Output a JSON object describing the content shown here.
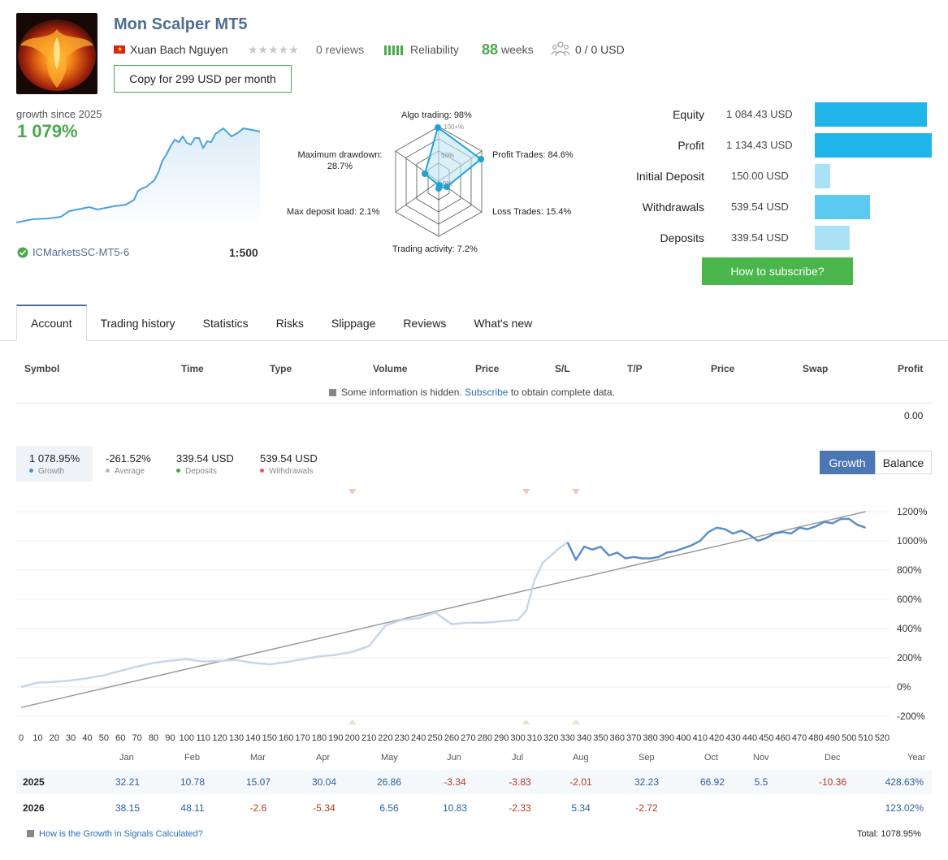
{
  "header": {
    "title": "Mon Scalper MT5",
    "author": "Xuan Bach Nguyen",
    "flag_icon": "vietnam-flag-icon",
    "stars": "★★★★★",
    "reviews": "0 reviews",
    "reliability_label": "Reliability",
    "weeks_value": "88",
    "weeks_label": "weeks",
    "subscribers": "0 / 0 USD",
    "copy_button": "Copy for 299 USD per month"
  },
  "growth_summary": {
    "label": "growth since 2025",
    "value": "1 079%",
    "broker": "ICMarketsSC-MT5-6",
    "leverage": "1:500"
  },
  "radar": {
    "algo_trading": "Algo trading: 98%",
    "profit_trades": "Profit Trades: 84.6%",
    "loss_trades": "Loss Trades: 15.4%",
    "trading_activity": "Trading activity: 7.2%",
    "max_deposit_load": "Max deposit load: 2.1%",
    "max_drawdown_line1": "Maximum drawdown:",
    "max_drawdown_line2": "28.7%",
    "ring_100": "100+%",
    "ring_50": "50%",
    "ring_0": "0%"
  },
  "account_stats": [
    {
      "label": "Equity",
      "value": "1 084.43 USD",
      "amount": 1084.43,
      "color": "#1fb5e8"
    },
    {
      "label": "Profit",
      "value": "1 134.43 USD",
      "amount": 1134.43,
      "color": "#1fb5e8"
    },
    {
      "label": "Initial Deposit",
      "value": "150.00 USD",
      "amount": 150.0,
      "color": "#a9e2f7"
    },
    {
      "label": "Withdrawals",
      "value": "539.54 USD",
      "amount": 539.54,
      "color": "#5ccaf0"
    },
    {
      "label": "Deposits",
      "value": "339.54 USD",
      "amount": 339.54,
      "color": "#a9e2f7"
    }
  ],
  "subscribe_button": "How to subscribe?",
  "tabs": [
    "Account",
    "Trading history",
    "Statistics",
    "Risks",
    "Slippage",
    "Reviews",
    "What's new"
  ],
  "trades_table": {
    "headers": [
      "Symbol",
      "Time",
      "Type",
      "Volume",
      "Price",
      "S/L",
      "T/P",
      "Price",
      "Swap",
      "Profit"
    ],
    "hidden_note_before": "Some information is hidden.",
    "hidden_note_link": "Subscribe",
    "hidden_note_after": "to obtain complete data.",
    "total_profit": "0.00"
  },
  "summary_chips": [
    {
      "value": "1 078.95%",
      "label": "Growth",
      "dot": "#4b8fd6"
    },
    {
      "value": "-261.52%",
      "label": "Average",
      "dot": "#b8b8b8"
    },
    {
      "value": "339.54 USD",
      "label": "Deposits",
      "dot": "#49a94b"
    },
    {
      "value": "539.54 USD",
      "label": "Withdrawals",
      "dot": "#e05a5a"
    }
  ],
  "chart_toggle": {
    "growth": "Growth",
    "balance": "Balance"
  },
  "chart_data": {
    "type": "line",
    "x_ticks": [
      "0",
      "10",
      "20",
      "30",
      "40",
      "50",
      "60",
      "70",
      "80",
      "90",
      "100",
      "110",
      "120",
      "130",
      "140",
      "150",
      "160",
      "170",
      "180",
      "190",
      "200",
      "210",
      "220",
      "230",
      "240",
      "250",
      "260",
      "270",
      "280",
      "290",
      "300",
      "310",
      "320",
      "330",
      "340",
      "350",
      "360",
      "370",
      "380",
      "390",
      "400",
      "410",
      "420",
      "430",
      "440",
      "450",
      "460",
      "470",
      "480",
      "490",
      "500",
      "510",
      "520"
    ],
    "y_ticks": [
      "1200%",
      "1000%",
      "800%",
      "600%",
      "400%",
      "200%",
      "0%",
      "-200%"
    ],
    "ylim": [
      -200,
      1200
    ],
    "xlim": [
      0,
      520
    ],
    "series": [
      {
        "color": "#c7d5ea",
        "x": [
          0,
          10,
          20,
          30,
          40,
          50,
          60,
          70,
          80,
          90,
          100,
          110,
          120,
          130,
          140,
          150,
          160,
          170,
          180,
          190,
          200,
          210,
          220,
          230,
          240,
          250,
          260,
          270,
          280,
          290,
          300,
          305,
          310,
          315,
          320,
          325,
          330
        ],
        "y": [
          0,
          30,
          35,
          45,
          60,
          80,
          110,
          140,
          165,
          180,
          190,
          175,
          180,
          185,
          165,
          155,
          170,
          190,
          210,
          220,
          240,
          280,
          420,
          460,
          470,
          510,
          430,
          440,
          440,
          450,
          460,
          520,
          730,
          850,
          900,
          950,
          990
        ]
      },
      {
        "color": "#5b8fc9",
        "x": [
          330,
          335,
          340,
          345,
          350,
          355,
          360,
          365,
          370,
          375,
          380,
          385,
          390,
          395,
          400,
          405,
          410,
          415,
          420,
          425,
          430,
          435,
          440,
          445,
          450,
          455,
          460,
          465,
          470,
          475,
          480,
          485,
          490,
          495,
          500,
          505,
          510
        ],
        "y": [
          990,
          870,
          960,
          940,
          960,
          900,
          920,
          880,
          890,
          880,
          880,
          890,
          920,
          930,
          950,
          970,
          1000,
          1060,
          1090,
          1080,
          1050,
          1070,
          1040,
          1000,
          1020,
          1050,
          1060,
          1050,
          1090,
          1080,
          1100,
          1130,
          1120,
          1150,
          1150,
          1110,
          1090
        ]
      }
    ],
    "trend": {
      "x": [
        0,
        510
      ],
      "y": [
        -140,
        1200
      ],
      "color": "#9a9a9a"
    },
    "markers_x": [
      200,
      305,
      335
    ]
  },
  "yearly_table": {
    "months": [
      "Jan",
      "Feb",
      "Mar",
      "Apr",
      "May",
      "Jun",
      "Jul",
      "Aug",
      "Sep",
      "Oct",
      "Nov",
      "Dec",
      "Year"
    ],
    "rows": [
      {
        "year": "2025",
        "values": [
          "32.21",
          "10.78",
          "15.07",
          "30.04",
          "26.86",
          "-3.34",
          "-3.83",
          "-2.01",
          "32.23",
          "66.92",
          "5.5",
          "-10.36",
          "428.63%"
        ]
      },
      {
        "year": "2026",
        "values": [
          "38.15",
          "48.11",
          "-2.6",
          "-5.34",
          "6.56",
          "10.83",
          "-2.33",
          "5.34",
          "-2.72",
          "",
          "",
          "",
          "123.02%"
        ]
      }
    ],
    "how_link": "How is the Growth in Signals Calculated?",
    "total": "Total: 1078.95%"
  }
}
